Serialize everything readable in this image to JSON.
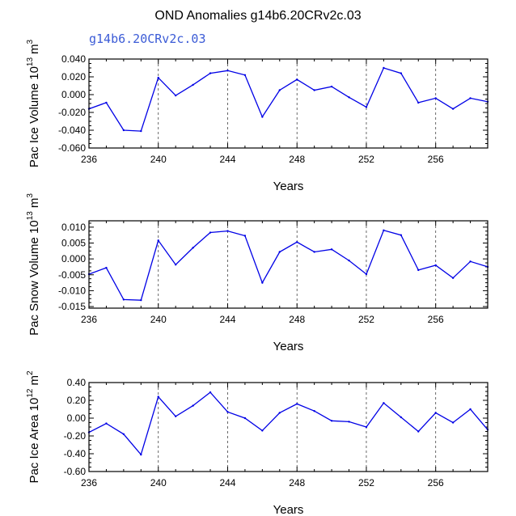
{
  "figure": {
    "title": "OND Anomalies g14b6.20CRv2c.03",
    "subtitle": "g14b6.20CRv2c.03",
    "series_color": "#0000e6"
  },
  "chart_data": [
    {
      "type": "line",
      "title": "",
      "xlabel": "Years",
      "ylabel": "Pac Ice Volume 10",
      "ylabel_exp": "13",
      "ylabel_unit": "m",
      "ylabel_unit_exp": "3",
      "x": [
        236,
        237,
        238,
        239,
        240,
        241,
        242,
        243,
        244,
        245,
        246,
        247,
        248,
        249,
        250,
        251,
        252,
        253,
        254,
        255,
        256,
        257,
        258,
        259
      ],
      "values": [
        -0.016,
        -0.009,
        -0.04,
        -0.041,
        0.019,
        -0.001,
        0.011,
        0.024,
        0.027,
        0.022,
        -0.025,
        0.005,
        0.017,
        0.005,
        0.009,
        -0.003,
        -0.014,
        0.03,
        0.024,
        -0.009,
        -0.004,
        -0.016,
        -0.004,
        -0.008
      ],
      "xlim": [
        236,
        259
      ],
      "ylim": [
        -0.06,
        0.04
      ],
      "xticks": [
        236,
        240,
        244,
        248,
        252,
        256
      ],
      "xtick_labels": [
        "236",
        "240",
        "244",
        "248",
        "252",
        "256"
      ],
      "yticks": [
        -0.06,
        -0.04,
        -0.02,
        0.0,
        0.02,
        0.04
      ],
      "ytick_labels": [
        "-0.060",
        "-0.040",
        "-0.020",
        "0.000",
        "0.020",
        "0.040"
      ],
      "grid_x": [
        240,
        244,
        248,
        252,
        256
      ]
    },
    {
      "type": "line",
      "title": "",
      "xlabel": "Years",
      "ylabel": "Pac Snow Volume 10",
      "ylabel_exp": "13",
      "ylabel_unit": "m",
      "ylabel_unit_exp": "3",
      "x": [
        236,
        237,
        238,
        239,
        240,
        241,
        242,
        243,
        244,
        245,
        246,
        247,
        248,
        249,
        250,
        251,
        252,
        253,
        254,
        255,
        256,
        257,
        258,
        259
      ],
      "values": [
        -0.0048,
        -0.0028,
        -0.0128,
        -0.013,
        0.0058,
        -0.0018,
        0.0035,
        0.0083,
        0.0088,
        0.0073,
        -0.0075,
        0.0022,
        0.0053,
        0.0022,
        0.003,
        -0.0005,
        -0.0048,
        0.009,
        0.0075,
        -0.0035,
        -0.002,
        -0.006,
        -0.0008,
        -0.0025
      ],
      "xlim": [
        236,
        259
      ],
      "ylim": [
        -0.0155,
        0.012
      ],
      "xticks": [
        236,
        240,
        244,
        248,
        252,
        256
      ],
      "xtick_labels": [
        "236",
        "240",
        "244",
        "248",
        "252",
        "256"
      ],
      "yticks": [
        -0.015,
        -0.01,
        -0.005,
        0.0,
        0.005,
        0.01
      ],
      "ytick_labels": [
        "-0.015",
        "-0.010",
        "-0.005",
        "0.000",
        "0.005",
        "0.010"
      ],
      "grid_x": [
        240,
        244,
        248,
        252,
        256
      ]
    },
    {
      "type": "line",
      "title": "",
      "xlabel": "Years",
      "ylabel": "Pac Ice Area 10",
      "ylabel_exp": "12",
      "ylabel_unit": "m",
      "ylabel_unit_exp": "2",
      "x": [
        236,
        237,
        238,
        239,
        240,
        241,
        242,
        243,
        244,
        245,
        246,
        247,
        248,
        249,
        250,
        251,
        252,
        253,
        254,
        255,
        256,
        257,
        258,
        259
      ],
      "values": [
        -0.16,
        -0.06,
        -0.18,
        -0.41,
        0.24,
        0.02,
        0.14,
        0.29,
        0.07,
        0.0,
        -0.14,
        0.06,
        0.16,
        0.08,
        -0.03,
        -0.04,
        -0.1,
        0.17,
        0.01,
        -0.15,
        0.06,
        -0.05,
        0.1,
        -0.13
      ],
      "xlim": [
        236,
        259
      ],
      "ylim": [
        -0.6,
        0.4
      ],
      "xticks": [
        236,
        240,
        244,
        248,
        252,
        256
      ],
      "xtick_labels": [
        "236",
        "240",
        "244",
        "248",
        "252",
        "256"
      ],
      "yticks": [
        -0.6,
        -0.4,
        -0.2,
        0.0,
        0.2,
        0.4
      ],
      "ytick_labels": [
        "-0.60",
        "-0.40",
        "-0.20",
        "0.00",
        "0.20",
        "0.40"
      ],
      "grid_x": [
        240,
        244,
        248,
        252,
        256
      ]
    }
  ]
}
